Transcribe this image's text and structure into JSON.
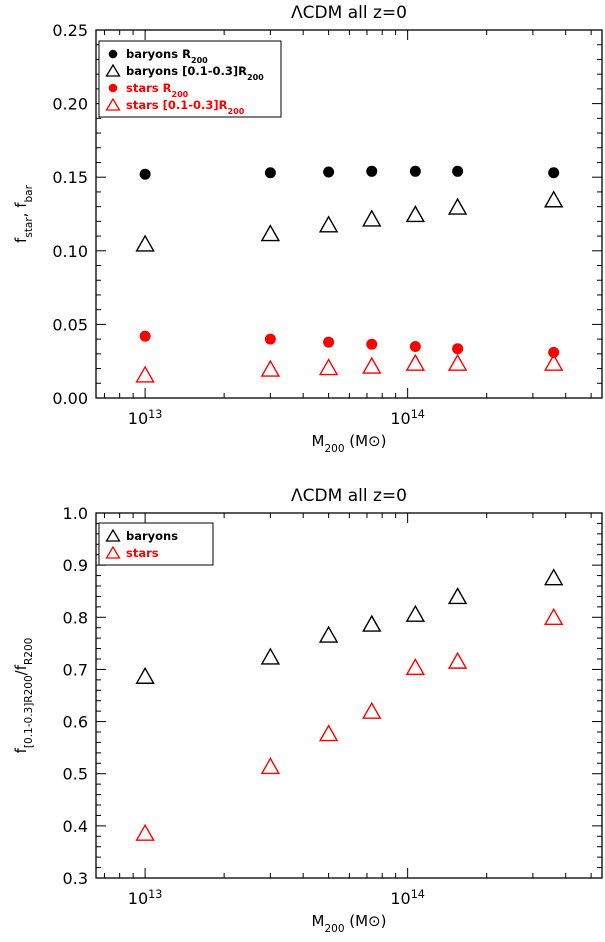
{
  "panels": [
    {
      "title": "ΛCDM all z=0",
      "xlabel": "M200 (M⊙)",
      "ylabel": "fstar, fbar",
      "colors": {
        "baryons": "#000000",
        "stars": "#ff0000"
      },
      "legend": [
        {
          "label": "baryons R200",
          "marker": "circle",
          "color": "#000000"
        },
        {
          "label": "baryons [0.1-0.3]R200",
          "marker": "triangle",
          "color": "#000000"
        },
        {
          "label": "stars R200",
          "marker": "circle",
          "color": "#ff0000"
        },
        {
          "label": "stars [0.1-0.3]R200",
          "marker": "triangle",
          "color": "#ff0000"
        }
      ]
    },
    {
      "title": "ΛCDM all z=0",
      "xlabel": "M200 (M⊙)",
      "ylabel": "f[0.1-0.3]R200/fR200",
      "colors": {
        "baryons": "#000000",
        "stars": "#ff0000"
      },
      "legend": [
        {
          "label": "baryons",
          "marker": "triangle",
          "color": "#000000"
        },
        {
          "label": "stars",
          "marker": "triangle",
          "color": "#ff0000"
        }
      ]
    }
  ],
  "chart_data": [
    {
      "type": "scatter",
      "title": "ΛCDM all z=0",
      "xlabel": "M200 (M⊙)",
      "ylabel": "fstar, fbar",
      "xscale": "log",
      "xlim": [
        6500000000000.0,
        550000000000000.0
      ],
      "ylim": [
        0.0,
        0.25
      ],
      "x_ticks": [
        "10^13",
        "10^14"
      ],
      "y_ticks": [
        "0.00",
        "0.05",
        "0.10",
        "0.15",
        "0.20",
        "0.25"
      ],
      "legend_position": "top-left",
      "x": [
        10000000000000.0,
        30000000000000.0,
        50000000000000.0,
        73000000000000.0,
        107000000000000.0,
        155000000000000.0,
        360000000000000.0
      ],
      "series": [
        {
          "name": "baryons R200",
          "marker": "circle",
          "values": [
            0.152,
            0.153,
            0.1535,
            0.154,
            0.154,
            0.154,
            0.153
          ]
        },
        {
          "name": "baryons [0.1-0.3]R200",
          "marker": "triangle",
          "values": [
            0.104,
            0.111,
            0.117,
            0.121,
            0.124,
            0.129,
            0.134
          ]
        },
        {
          "name": "stars R200",
          "marker": "circle",
          "values": [
            0.042,
            0.04,
            0.038,
            0.0365,
            0.035,
            0.0335,
            0.031
          ]
        },
        {
          "name": "stars [0.1-0.3]R200",
          "marker": "triangle",
          "values": [
            0.015,
            0.019,
            0.02,
            0.021,
            0.023,
            0.023,
            0.023
          ]
        }
      ]
    },
    {
      "type": "scatter",
      "title": "ΛCDM all z=0",
      "xlabel": "M200 (M⊙)",
      "ylabel": "f[0.1-0.3]R200/fR200",
      "xscale": "log",
      "xlim": [
        6500000000000.0,
        550000000000000.0
      ],
      "ylim": [
        0.3,
        1.0
      ],
      "x_ticks": [
        "10^13",
        "10^14"
      ],
      "y_ticks": [
        "0.3",
        "0.4",
        "0.5",
        "0.6",
        "0.7",
        "0.8",
        "0.9",
        "1.0"
      ],
      "legend_position": "top-left",
      "x": [
        10000000000000.0,
        30000000000000.0,
        50000000000000.0,
        73000000000000.0,
        107000000000000.0,
        155000000000000.0,
        360000000000000.0
      ],
      "series": [
        {
          "name": "baryons",
          "marker": "triangle",
          "values": [
            0.685,
            0.722,
            0.764,
            0.785,
            0.804,
            0.838,
            0.874
          ]
        },
        {
          "name": "stars",
          "marker": "triangle",
          "values": [
            0.384,
            0.512,
            0.575,
            0.618,
            0.702,
            0.714,
            0.798
          ]
        }
      ]
    }
  ]
}
